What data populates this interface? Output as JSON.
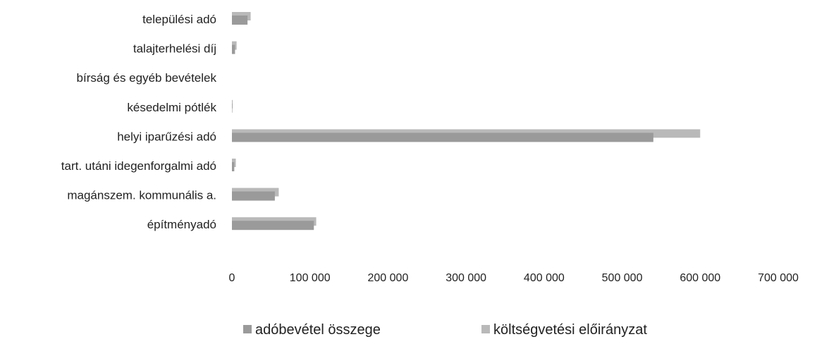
{
  "chart_data": {
    "type": "bar",
    "orientation": "horizontal",
    "title": "",
    "xlabel": "",
    "ylabel": "",
    "categories": [
      "települési adó",
      "talajterhelési díj",
      "bírság és egyéb bevételek",
      "késedelmi pótlék",
      "helyi iparűzési adó",
      "tart. utáni idegenforgalmi adó",
      "magánszem. kommunális a.",
      "építményadó"
    ],
    "series": [
      {
        "name": "adóbevétel összege",
        "values": [
          20000,
          4000,
          0,
          500,
          540000,
          3000,
          55000,
          105000
        ],
        "color": "#9a9a9a"
      },
      {
        "name": "költségvetési előirányzat",
        "values": [
          24000,
          6000,
          0,
          1000,
          600000,
          5000,
          60000,
          108000
        ],
        "color": "#b9b9b9"
      }
    ],
    "xlim": [
      0,
      700000
    ],
    "xticks": [
      "0",
      "100 000",
      "200 000",
      "300 000",
      "400 000",
      "500 000",
      "600 000",
      "700 000"
    ],
    "xtick_values": [
      0,
      100000,
      200000,
      300000,
      400000,
      500000,
      600000,
      700000
    ],
    "grid": false,
    "legend_position": "bottom"
  }
}
